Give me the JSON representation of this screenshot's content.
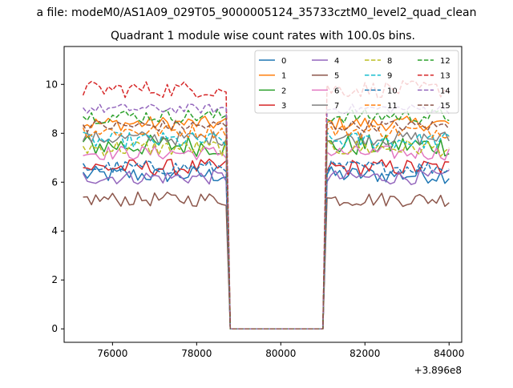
{
  "suptitle": "a file: modeM0/AS1A09_029T05_9000005124_35733cztM0_level2_quad_clean",
  "chart_data": {
    "type": "line",
    "title": "Quadrant 1 module wise count rates with 100.0s bins.",
    "xlabel": "",
    "ylabel": "",
    "xlim": [
      74850,
      84300
    ],
    "ylim": [
      -0.55,
      11.55
    ],
    "x_offset_label": "+3.896e8",
    "xticks": [
      76000,
      78000,
      80000,
      82000,
      84000
    ],
    "xtick_labels": [
      "76000",
      "78000",
      "80000",
      "82000",
      "84000"
    ],
    "yticks": [
      0,
      2,
      4,
      6,
      8,
      10
    ],
    "ytick_labels": [
      "0",
      "2",
      "4",
      "6",
      "8",
      "10"
    ],
    "grid": false,
    "legend_position": "top-right",
    "legend_columns": 4,
    "gap_start": 78700,
    "gap_end": 81000,
    "segments": [
      {
        "x_start": 75300,
        "x_end": 78700,
        "n": 35
      },
      {
        "x_start": 81100,
        "x_end": 84000,
        "n": 30
      }
    ],
    "series": [
      {
        "name": "0",
        "color": "#1f77b4",
        "dash": "solid",
        "level": 6.3,
        "noise": 0.35
      },
      {
        "name": "1",
        "color": "#ff7f0e",
        "dash": "solid",
        "level": 8.4,
        "noise": 0.3
      },
      {
        "name": "2",
        "color": "#2ca02c",
        "dash": "solid",
        "level": 7.5,
        "noise": 0.45
      },
      {
        "name": "3",
        "color": "#d62728",
        "dash": "solid",
        "level": 6.6,
        "noise": 0.35
      },
      {
        "name": "4",
        "color": "#9467bd",
        "dash": "solid",
        "level": 6.2,
        "noise": 0.3
      },
      {
        "name": "5",
        "color": "#8c564b",
        "dash": "solid",
        "level": 5.3,
        "noise": 0.3
      },
      {
        "name": "6",
        "color": "#e377c2",
        "dash": "solid",
        "level": 7.2,
        "noise": 0.3
      },
      {
        "name": "7",
        "color": "#7f7f7f",
        "dash": "solid",
        "level": 7.8,
        "noise": 0.3
      },
      {
        "name": "8",
        "color": "#bcbd22",
        "dash": "dashed",
        "level": 7.4,
        "noise": 0.35
      },
      {
        "name": "9",
        "color": "#17becf",
        "dash": "dashed",
        "level": 7.7,
        "noise": 0.35
      },
      {
        "name": "10",
        "color": "#1f77b4",
        "dash": "dashed",
        "level": 6.6,
        "noise": 0.3
      },
      {
        "name": "11",
        "color": "#ff7f0e",
        "dash": "dashed",
        "level": 8.1,
        "noise": 0.3
      },
      {
        "name": "12",
        "color": "#2ca02c",
        "dash": "dashed",
        "level": 8.7,
        "noise": 0.3
      },
      {
        "name": "13",
        "color": "#d62728",
        "dash": "dashed",
        "level": 9.8,
        "noise": 0.35
      },
      {
        "name": "14",
        "color": "#9467bd",
        "dash": "dashed",
        "level": 9.0,
        "noise": 0.2
      },
      {
        "name": "15",
        "color": "#8c564b",
        "dash": "dashed",
        "level": 8.3,
        "noise": 0.25
      }
    ]
  }
}
